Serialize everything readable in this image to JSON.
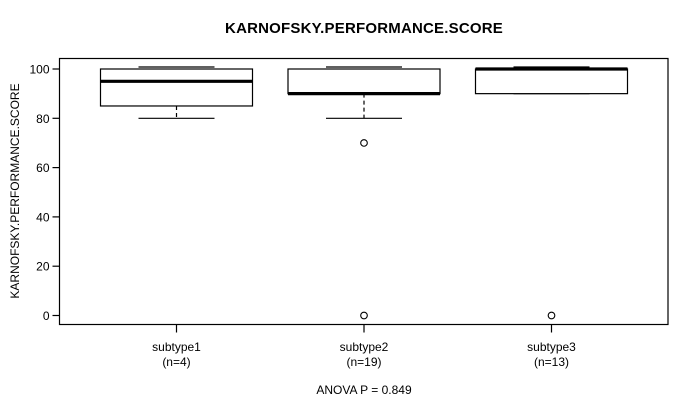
{
  "chart_data": {
    "type": "box",
    "title": "KARNOFSKY.PERFORMANCE.SCORE",
    "ylabel": "KARNOFSKY.PERFORMANCE.SCORE",
    "xlabel": "",
    "annotation": "ANOVA P = 0.849",
    "yticks": [
      0,
      20,
      40,
      60,
      80,
      100
    ],
    "ylim": [
      -4,
      104
    ],
    "grid": false,
    "legend": "none",
    "colors": {
      "line": "#000000",
      "box_fill": "#ffffff",
      "background": "#ffffff"
    },
    "groups": [
      {
        "label": "subtype1",
        "sublabel": "(n=4)",
        "n": 4,
        "whisker_low": 80,
        "q1": 85,
        "median": 95,
        "q3": 100,
        "whisker_high": 100,
        "outliers": []
      },
      {
        "label": "subtype2",
        "sublabel": "(n=19)",
        "n": 19,
        "whisker_low": 80,
        "q1": 90,
        "median": 90,
        "q3": 100,
        "whisker_high": 100,
        "outliers": [
          70,
          0
        ]
      },
      {
        "label": "subtype3",
        "sublabel": "(n=13)",
        "n": 13,
        "whisker_low": 90,
        "q1": 90,
        "median": 100,
        "q3": 100,
        "whisker_high": 100,
        "outliers": [
          0
        ]
      }
    ]
  }
}
